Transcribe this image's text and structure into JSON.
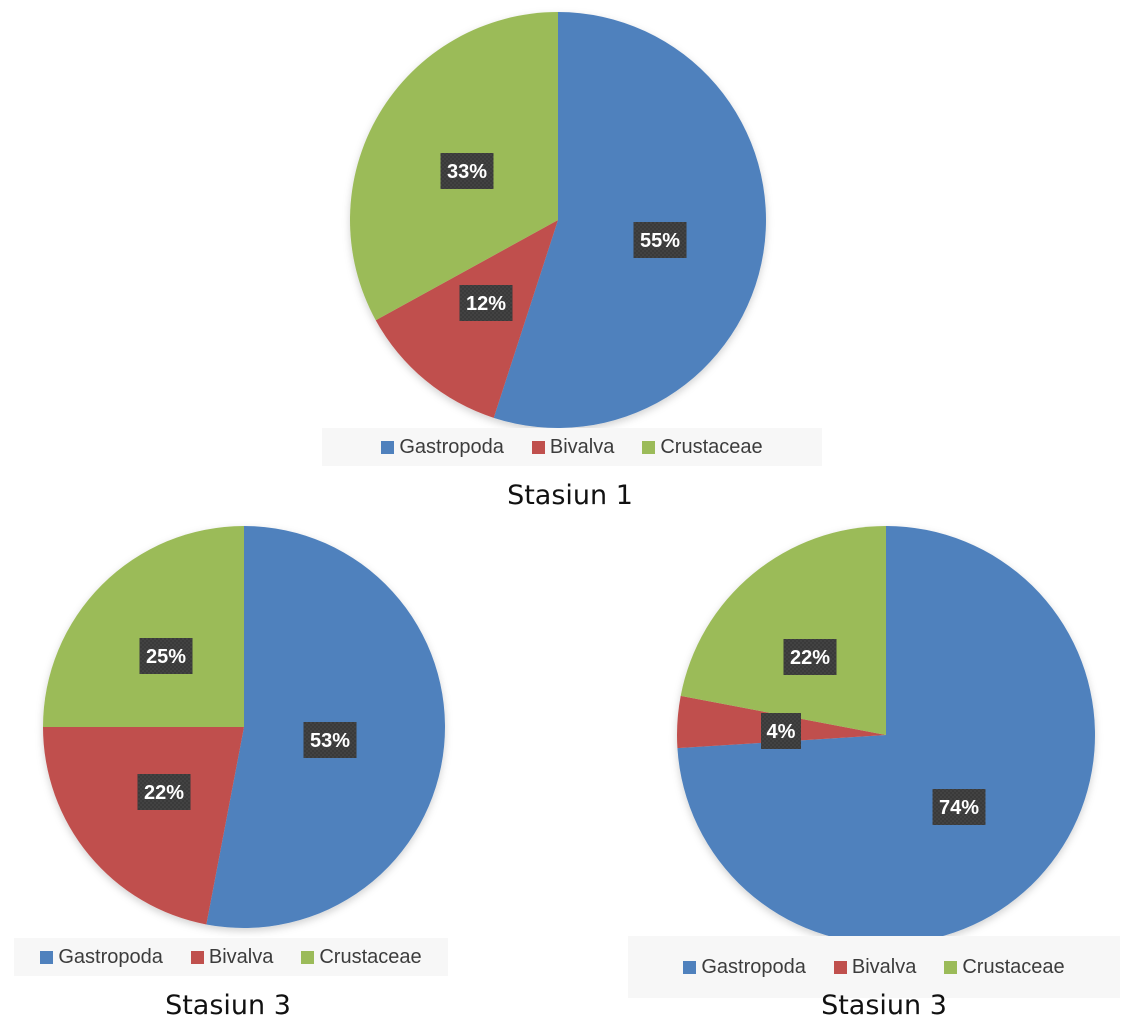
{
  "colors": {
    "gastropoda": "#4f81bd",
    "bivalva": "#c0504d",
    "crustaceae": "#9bbb59",
    "label_bg": "#3a3a3a",
    "label_text": "#ffffff"
  },
  "chart_data": [
    {
      "type": "pie",
      "title": "",
      "caption": "Stasiun 1",
      "legend_position": "bottom",
      "slices": [
        {
          "name": "Gastropoda",
          "value": 55,
          "label": "55%",
          "color": "#4f81bd"
        },
        {
          "name": "Bivalva",
          "value": 12,
          "label": "12%",
          "color": "#c0504d"
        },
        {
          "name": "Crustaceae",
          "value": 33,
          "label": "33%",
          "color": "#9bbb59"
        }
      ]
    },
    {
      "type": "pie",
      "title": "",
      "caption": "Stasiun 3",
      "legend_position": "bottom",
      "slices": [
        {
          "name": "Gastropoda",
          "value": 53,
          "label": "53%",
          "color": "#4f81bd"
        },
        {
          "name": "Bivalva",
          "value": 22,
          "label": "22%",
          "color": "#c0504d"
        },
        {
          "name": "Crustaceae",
          "value": 25,
          "label": "25%",
          "color": "#9bbb59"
        }
      ]
    },
    {
      "type": "pie",
      "title": "",
      "caption": "Stasiun 3",
      "legend_position": "bottom",
      "slices": [
        {
          "name": "Gastropoda",
          "value": 74,
          "label": "74%",
          "color": "#4f81bd"
        },
        {
          "name": "Bivalva",
          "value": 4,
          "label": "4%",
          "color": "#c0504d"
        },
        {
          "name": "Crustaceae",
          "value": 22,
          "label": "22%",
          "color": "#9bbb59"
        }
      ]
    }
  ]
}
